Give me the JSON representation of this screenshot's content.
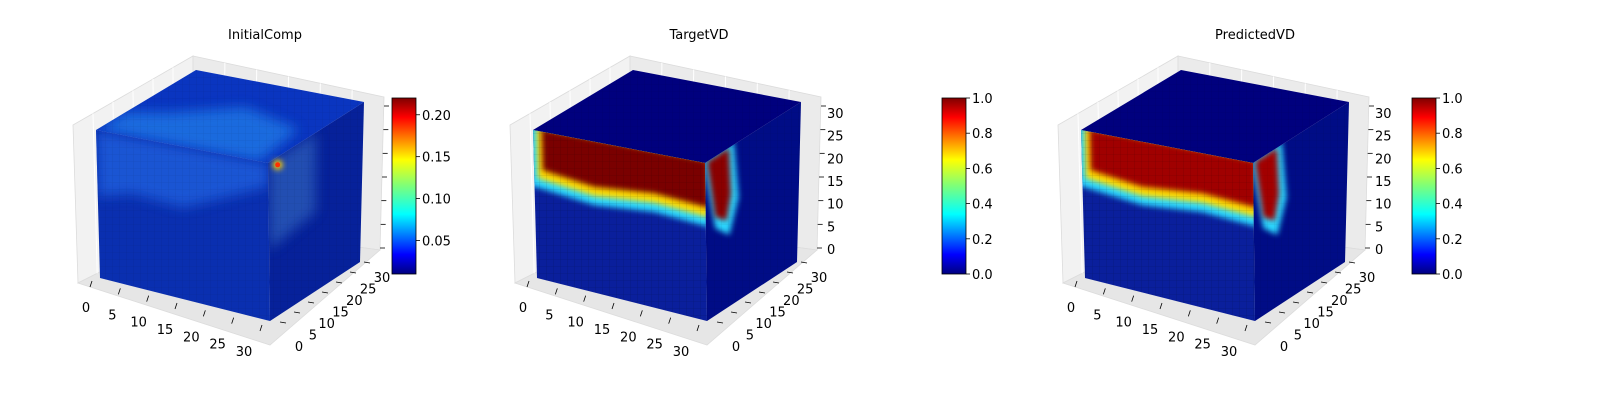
{
  "figure": {
    "panels": [
      {
        "title": "InitialComp",
        "show_z_ticklabels": false,
        "colorbar": {
          "ticks": [
            "0.05",
            "0.10",
            "0.15",
            "0.20"
          ],
          "range": [
            0.01,
            0.22
          ]
        },
        "faces": {
          "top": {
            "style": "blob",
            "base": "#0a35c0",
            "blob": "#1f6ee0"
          },
          "front": {
            "style": "initial",
            "base": "#0a2fb0",
            "blob": "#1c5ad8"
          },
          "side": {
            "style": "initial_side",
            "base": "#06219a",
            "blob": "#2a5ab8",
            "hot": "#ffd000"
          }
        }
      },
      {
        "title": "TargetVD",
        "show_z_ticklabels": true,
        "colorbar": {
          "ticks": [
            "0.0",
            "0.2",
            "0.4",
            "0.6",
            "0.8",
            "1.0"
          ],
          "range": [
            0,
            1
          ]
        },
        "faces": {
          "top": {
            "style": "dark",
            "base": "#00007e"
          },
          "front": {
            "style": "band",
            "base": "#0a1f9c",
            "band": "#7a0000"
          },
          "side": {
            "style": "side_band",
            "base": "#000c86",
            "band": "#8a0000"
          }
        }
      },
      {
        "title": "PredictedVD",
        "show_z_ticklabels": true,
        "colorbar": {
          "ticks": [
            "0.0",
            "0.2",
            "0.4",
            "0.6",
            "0.8",
            "1.0"
          ],
          "range": [
            0,
            1
          ]
        },
        "faces": {
          "top": {
            "style": "dark",
            "base": "#00007e"
          },
          "front": {
            "style": "band",
            "base": "#0a1f9c",
            "band": "#a00000"
          },
          "side": {
            "style": "side_band",
            "base": "#000c86",
            "band": "#a20000"
          }
        }
      }
    ]
  },
  "chart_data": [
    {
      "type": "heatmap",
      "title": "InitialComp",
      "kind": "3d-voxel",
      "x_ticks": [
        0,
        5,
        10,
        15,
        20,
        25,
        30
      ],
      "y_ticks": [
        0,
        5,
        10,
        15,
        20,
        25,
        30
      ],
      "z_ticks": [],
      "colormap": "jet",
      "colorbar_range": [
        0.01,
        0.22
      ]
    },
    {
      "type": "heatmap",
      "title": "TargetVD",
      "kind": "3d-voxel",
      "x_ticks": [
        0,
        5,
        10,
        15,
        20,
        25,
        30
      ],
      "y_ticks": [
        0,
        5,
        10,
        15,
        20,
        25,
        30
      ],
      "z_ticks": [
        0,
        5,
        10,
        15,
        20,
        25,
        30
      ],
      "colormap": "jet",
      "colorbar_range": [
        0.0,
        1.0
      ]
    },
    {
      "type": "heatmap",
      "title": "PredictedVD",
      "kind": "3d-voxel",
      "x_ticks": [
        0,
        5,
        10,
        15,
        20,
        25,
        30
      ],
      "y_ticks": [
        0,
        5,
        10,
        15,
        20,
        25,
        30
      ],
      "z_ticks": [
        0,
        5,
        10,
        15,
        20,
        25,
        30
      ],
      "colormap": "jet",
      "colorbar_range": [
        0.0,
        1.0
      ]
    }
  ]
}
